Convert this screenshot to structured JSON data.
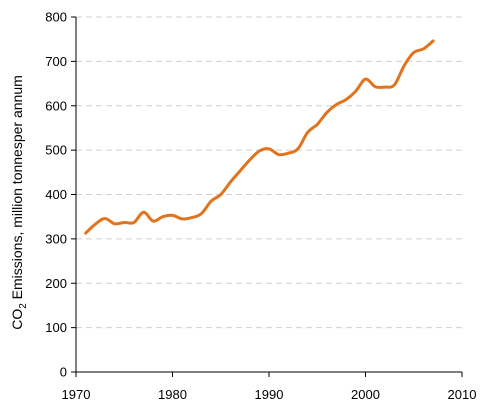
{
  "chart_data": {
    "type": "line",
    "title": "",
    "xlabel": "",
    "ylabel_main": "CO",
    "ylabel_sub": "2",
    "ylabel_rest": " Emissions, million tonnesper annum",
    "xlim": [
      1970,
      2010
    ],
    "ylim": [
      0,
      800
    ],
    "xticks": [
      1970,
      1980,
      1990,
      2000,
      2010
    ],
    "yticks": [
      0,
      100,
      200,
      300,
      400,
      500,
      600,
      700,
      800
    ],
    "grid": "horizontal-dashed",
    "line_color": "#E0731C",
    "series": [
      {
        "x": [
          1971,
          1972,
          1973,
          1974,
          1975,
          1976,
          1977,
          1978,
          1979,
          1980,
          1981,
          1982,
          1983,
          1984,
          1985,
          1986,
          1987,
          1988,
          1989,
          1990,
          1991,
          1992,
          1993,
          1994,
          1995,
          1996,
          1997,
          1998,
          1999,
          2000,
          2001,
          2002,
          2003,
          2004,
          2005,
          2006,
          2007
        ],
        "y": [
          313,
          333,
          346,
          334,
          337,
          337,
          360,
          340,
          350,
          353,
          345,
          348,
          357,
          385,
          400,
          428,
          453,
          478,
          498,
          503,
          490,
          493,
          503,
          540,
          558,
          585,
          603,
          614,
          633,
          660,
          643,
          642,
          647,
          690,
          720,
          728,
          746
        ]
      }
    ]
  }
}
